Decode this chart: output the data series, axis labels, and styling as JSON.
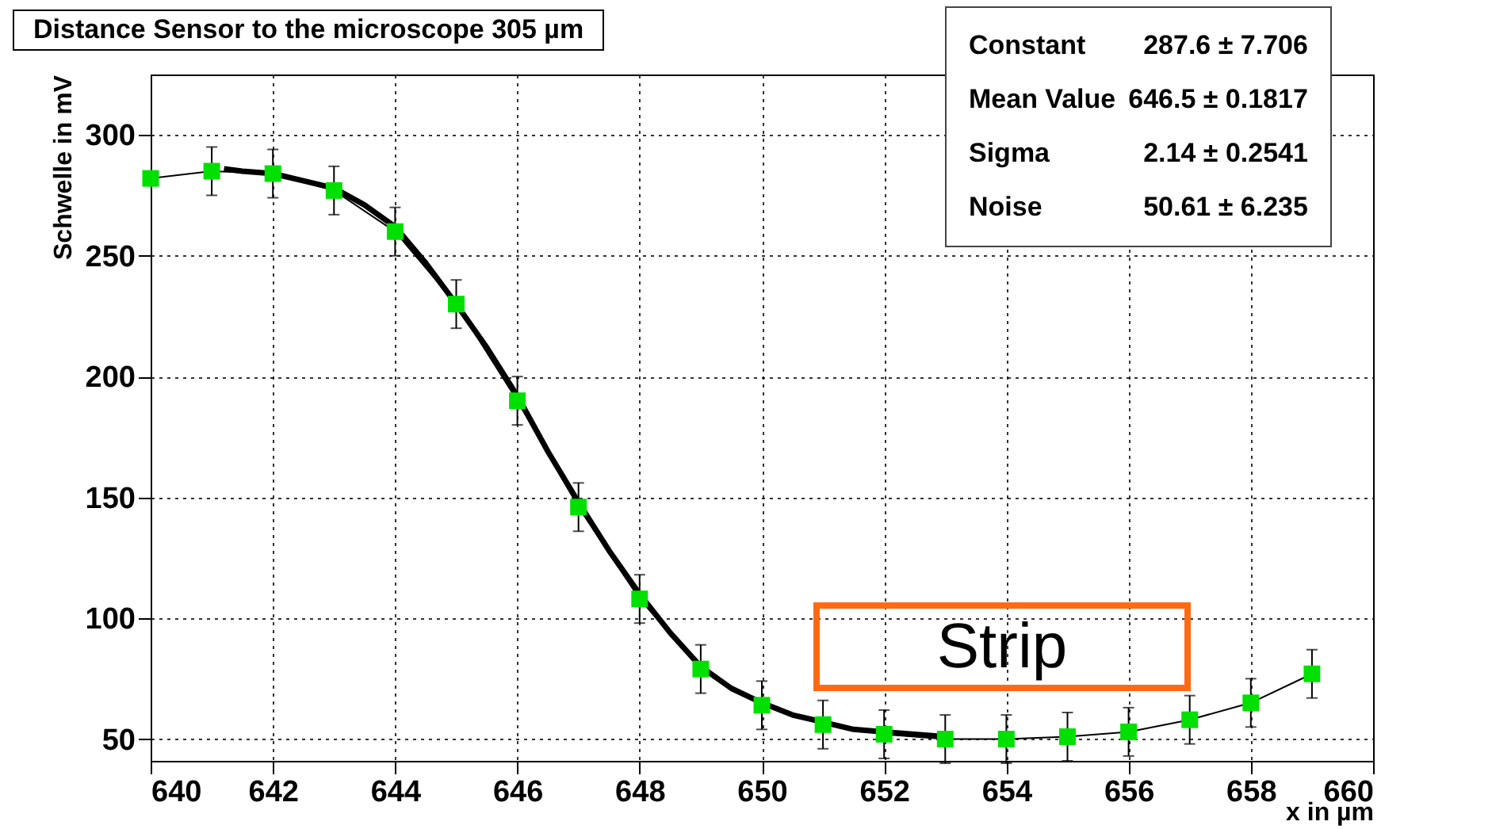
{
  "chart_data": {
    "type": "line",
    "title": "Distance Sensor to the microscope 305 µm",
    "xlabel": "x in µm",
    "ylabel": "Schwelle in mV",
    "x": [
      640,
      641,
      642,
      643,
      644,
      645,
      646,
      647,
      648,
      649,
      650,
      651,
      652,
      653,
      654,
      655,
      656,
      657,
      658,
      659
    ],
    "series": [
      {
        "marker": "square",
        "color": "#00e000",
        "values": [
          282,
          285,
          284,
          277,
          260,
          230,
          190,
          146,
          108,
          79,
          64,
          56,
          52,
          50,
          50,
          51,
          53,
          58,
          65,
          77
        ],
        "errors": [
          null,
          10,
          10,
          10,
          10,
          10,
          10,
          10,
          10,
          10,
          10,
          10,
          10,
          10,
          10,
          10,
          10,
          10,
          10,
          10
        ]
      },
      {
        "marker": "none",
        "color": "#000000",
        "x": [
          641.2,
          641.5,
          642,
          642.5,
          643,
          643.5,
          644,
          644.5,
          645,
          645.5,
          646,
          646.5,
          647,
          647.5,
          648,
          648.5,
          649,
          649.5,
          650,
          650.5,
          651,
          651.5,
          652,
          652.5,
          653
        ],
        "values": [
          286,
          285,
          284,
          281,
          278,
          271,
          262,
          247,
          230,
          212,
          192,
          169,
          148,
          128,
          110,
          94,
          80,
          71,
          65,
          60,
          57,
          54,
          53,
          52,
          51
        ]
      }
    ],
    "xlim": [
      640,
      660
    ],
    "xticks": [
      640,
      642,
      644,
      646,
      648,
      650,
      652,
      654,
      656,
      658,
      660
    ],
    "ylim": [
      41,
      325
    ],
    "yticks": [
      50,
      100,
      150,
      200,
      250,
      300
    ],
    "grid": true,
    "annotations": [
      "Constant",
      "287.6 ± 7.706",
      "Mean Value",
      "646.5 ± 0.1817",
      "Sigma",
      "2.14 ± 0.2541",
      "Noise",
      "50.61 ± 6.235",
      "Strip"
    ]
  }
}
